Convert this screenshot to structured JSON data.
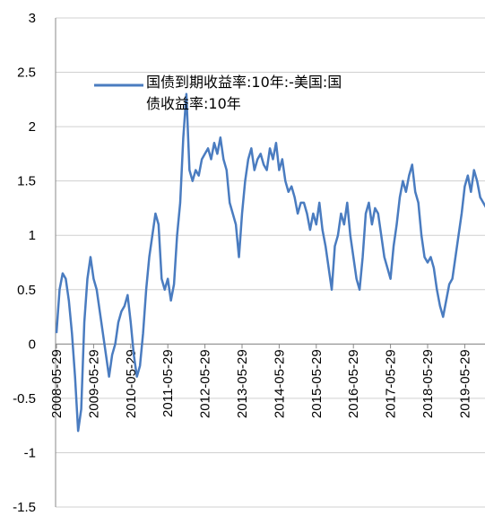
{
  "chart_data": {
    "type": "line",
    "categories": [
      "2008-05-29",
      null,
      null,
      null,
      null,
      null,
      null,
      null,
      null,
      null,
      null,
      null,
      "2009-05-29",
      null,
      null,
      null,
      null,
      null,
      null,
      null,
      null,
      null,
      null,
      null,
      "2010-05-29",
      null,
      null,
      null,
      null,
      null,
      null,
      null,
      null,
      null,
      null,
      null,
      "2011-05-29",
      null,
      null,
      null,
      null,
      null,
      null,
      null,
      null,
      null,
      null,
      null,
      "2012-05-29",
      null,
      null,
      null,
      null,
      null,
      null,
      null,
      null,
      null,
      null,
      null,
      "2013-05-29",
      null,
      null,
      null,
      null,
      null,
      null,
      null,
      null,
      null,
      null,
      null,
      "2014-05-29",
      null,
      null,
      null,
      null,
      null,
      null,
      null,
      null,
      null,
      null,
      null,
      "2015-05-29",
      null,
      null,
      null,
      null,
      null,
      null,
      null,
      null,
      null,
      null,
      null,
      "2016-05-29",
      null,
      null,
      null,
      null,
      null,
      null,
      null,
      null,
      null,
      null,
      null,
      "2017-05-29",
      null,
      null,
      null,
      null,
      null,
      null,
      null,
      null,
      null,
      null,
      null,
      "2018-05-29",
      null,
      null,
      null,
      null,
      null,
      null,
      null,
      null,
      null,
      null,
      null,
      "2019-05-29",
      null,
      null,
      null,
      null,
      null,
      null,
      null
    ],
    "series": [
      {
        "name": "国债到期收益率:10年:-美国:国债收益率:10年",
        "color": "#4a7cc0",
        "values": [
          0.1,
          0.5,
          0.65,
          0.6,
          0.4,
          0.1,
          -0.3,
          -0.8,
          -0.6,
          0.2,
          0.6,
          0.8,
          0.6,
          0.5,
          0.3,
          0.1,
          -0.1,
          -0.3,
          -0.1,
          0.0,
          0.2,
          0.3,
          0.35,
          0.45,
          0.2,
          -0.1,
          -0.3,
          -0.2,
          0.1,
          0.5,
          0.8,
          1.0,
          1.2,
          1.1,
          0.6,
          0.5,
          0.6,
          0.4,
          0.55,
          1.0,
          1.3,
          1.9,
          2.3,
          1.6,
          1.5,
          1.6,
          1.55,
          1.7,
          1.75,
          1.8,
          1.7,
          1.85,
          1.75,
          1.9,
          1.7,
          1.6,
          1.3,
          1.2,
          1.1,
          0.8,
          1.2,
          1.5,
          1.7,
          1.8,
          1.6,
          1.7,
          1.75,
          1.65,
          1.6,
          1.8,
          1.7,
          1.85,
          1.6,
          1.7,
          1.5,
          1.4,
          1.45,
          1.35,
          1.2,
          1.3,
          1.3,
          1.2,
          1.05,
          1.2,
          1.1,
          1.3,
          1.05,
          0.9,
          0.7,
          0.5,
          0.9,
          1.0,
          1.2,
          1.1,
          1.3,
          1.0,
          0.8,
          0.6,
          0.5,
          0.8,
          1.2,
          1.3,
          1.1,
          1.25,
          1.2,
          1.0,
          0.8,
          0.7,
          0.6,
          0.9,
          1.1,
          1.35,
          1.5,
          1.4,
          1.55,
          1.65,
          1.4,
          1.3,
          1.0,
          0.8,
          0.75,
          0.8,
          0.7,
          0.5,
          0.35,
          0.25,
          0.4,
          0.55,
          0.6,
          0.8,
          1.0,
          1.2,
          1.45,
          1.55,
          1.4,
          1.6,
          1.5,
          1.35,
          1.3,
          1.25
        ]
      }
    ],
    "ylim": [
      -1.5,
      3
    ],
    "yticks": [
      3,
      2.5,
      2,
      1.5,
      1,
      0.5,
      0,
      -0.5,
      -1,
      -1.5
    ],
    "grid": true
  }
}
